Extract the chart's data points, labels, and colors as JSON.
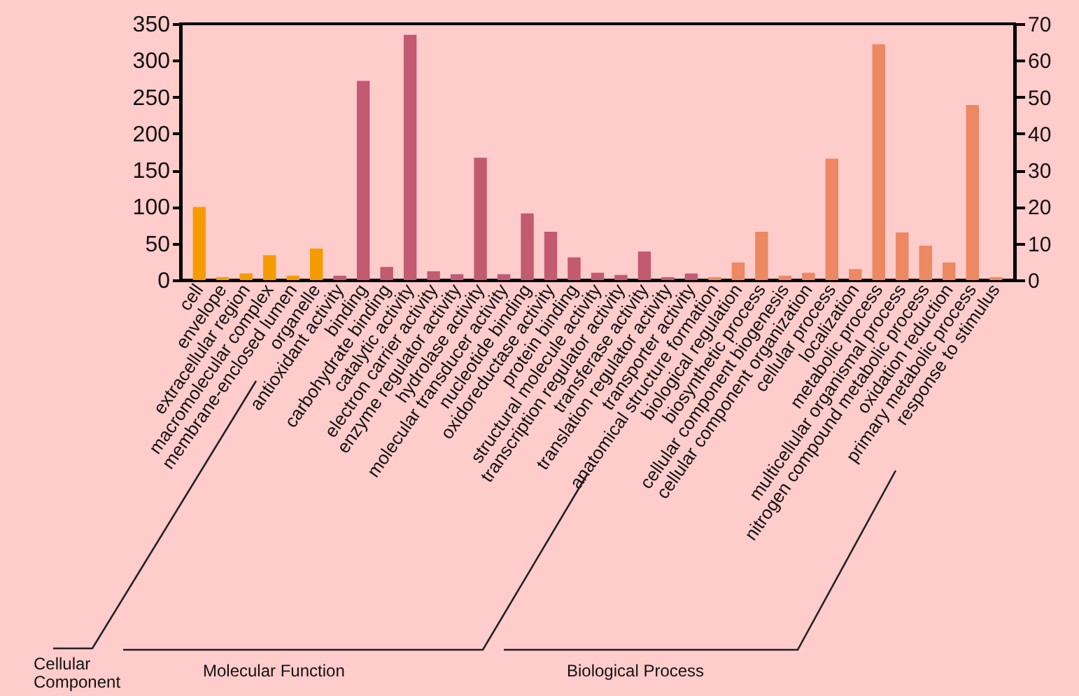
{
  "chart_data": {
    "type": "bar",
    "categories": [
      "cell",
      "envelope",
      "extracellular region",
      "macromolecular complex",
      "membrane-enclosed lumen",
      "organelle",
      "antioxidant activity",
      "binding",
      "carbohydrate binding",
      "catalytic activity",
      "electron carrier activity",
      "enzyme regulator activity",
      "hydrolase activity",
      "molecular transducer activity",
      "nucleotide binding",
      "oxidoreductase activity",
      "protein binding",
      "structural molecule activity",
      "transcription regulator activity",
      "transferase activity",
      "translation regulator activity",
      "transporter activity",
      "anatomical structure formation",
      "biological regulation",
      "biosynthetic process",
      "cellular component biogenesis",
      "cellular component organization",
      "cellular process",
      "localization",
      "metabolic process",
      "multicellular organismal process",
      "nitrogen compound metabolic process",
      "oxidation reduction",
      "primary metabolic process",
      "response to stimulus"
    ],
    "values": [
      100,
      4,
      9,
      34,
      6,
      43,
      6,
      272,
      18,
      335,
      12,
      8,
      167,
      8,
      91,
      66,
      31,
      10,
      7,
      39,
      4,
      9,
      4,
      24,
      66,
      6,
      10,
      166,
      15,
      322,
      65,
      47,
      24,
      239,
      4
    ],
    "colors": [
      "#f59b00",
      "#f59b00",
      "#f59b00",
      "#f59b00",
      "#f59b00",
      "#f59b00",
      "#c25a70",
      "#c25a70",
      "#c25a70",
      "#c25a70",
      "#c25a70",
      "#c25a70",
      "#c25a70",
      "#c25a70",
      "#c25a70",
      "#c25a70",
      "#c25a70",
      "#c25a70",
      "#c25a70",
      "#c25a70",
      "#c25a70",
      "#c25a70",
      "#ec8862",
      "#ec8862",
      "#ec8862",
      "#ec8862",
      "#ec8862",
      "#ec8862",
      "#ec8862",
      "#ec8862",
      "#ec8862",
      "#ec8862",
      "#ec8862",
      "#ec8862",
      "#ec8862"
    ],
    "ylim": [
      0,
      350
    ],
    "yticks": [
      0,
      50,
      100,
      150,
      200,
      250,
      300,
      350
    ],
    "y2lim": [
      0,
      70
    ],
    "y2ticks": [
      0,
      10,
      20,
      30,
      40,
      50,
      60,
      70
    ],
    "annotations": [
      "Cellular\nComponent",
      "Molecular Function",
      "Biological Process"
    ]
  }
}
